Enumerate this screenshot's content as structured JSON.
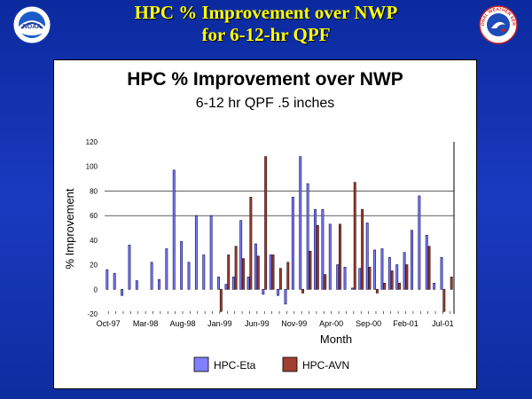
{
  "slide": {
    "title_line1": "HPC % Improvement over NWP",
    "title_line2": "for 6-12-hr QPF",
    "logo_left_text": "NOAA",
    "logo_right_text": "NATIONAL WEATHER SERVICE"
  },
  "colors": {
    "background": "#1533b5",
    "title": "#ffff00",
    "eta": "#8080ff",
    "avn": "#a04030"
  },
  "chart_data": {
    "type": "bar",
    "title": "HPC % Improvement over NWP",
    "subtitle": "6-12 hr QPF .5 inches",
    "xlabel": "Month",
    "ylabel": "% Improvement",
    "ylim": [
      -20,
      120
    ],
    "yticks": [
      -20,
      0,
      20,
      40,
      60,
      80,
      100,
      120
    ],
    "gridlines": [
      60,
      80
    ],
    "tick_labels": [
      "Oct-97",
      "Mar-98",
      "Aug-98",
      "Jan-99",
      "Jun-99",
      "Nov-99",
      "Apr-00",
      "Sep-00",
      "Feb-01",
      "Jul-01"
    ],
    "tick_index": [
      0,
      5,
      10,
      15,
      20,
      25,
      30,
      35,
      40,
      45
    ],
    "legend_position": "bottom",
    "categories": [
      "Oct-97",
      "Nov-97",
      "Dec-97",
      "Jan-98",
      "Feb-98",
      "Mar-98",
      "Apr-98",
      "May-98",
      "Jun-98",
      "Jul-98",
      "Aug-98",
      "Sep-98",
      "Oct-98",
      "Nov-98",
      "Dec-98",
      "Jan-99",
      "Feb-99",
      "Mar-99",
      "Apr-99",
      "May-99",
      "Jun-99",
      "Jul-99",
      "Aug-99",
      "Sep-99",
      "Oct-99",
      "Nov-99",
      "Dec-99",
      "Jan-00",
      "Feb-00",
      "Mar-00",
      "Apr-00",
      "May-00",
      "Jun-00",
      "Jul-00",
      "Aug-00",
      "Sep-00",
      "Oct-00",
      "Nov-00",
      "Dec-00",
      "Jan-01",
      "Feb-01",
      "Mar-01",
      "Apr-01",
      "May-01",
      "Jun-01",
      "Jul-01",
      "Aug-01"
    ],
    "series": [
      {
        "name": "HPC-Eta",
        "values": [
          16,
          13,
          -5,
          36,
          7,
          0,
          22,
          8,
          33,
          97,
          39,
          22,
          60,
          28,
          60,
          10,
          4,
          10,
          56,
          10,
          37,
          -4,
          28,
          -5,
          -12,
          75,
          108,
          86,
          65,
          65,
          53,
          20,
          18,
          1,
          17,
          54,
          32,
          33,
          26,
          20,
          30,
          48,
          76,
          44,
          5,
          26,
          0
        ]
      },
      {
        "name": "HPC-AVN",
        "values": [
          0,
          0,
          0,
          0,
          0,
          0,
          0,
          0,
          0,
          0,
          0,
          0,
          0,
          0,
          0,
          -18,
          28,
          35,
          25,
          75,
          27,
          108,
          28,
          17,
          22,
          0,
          -3,
          31,
          52,
          12,
          0,
          53,
          0,
          87,
          65,
          18,
          -3,
          5,
          15,
          5,
          20,
          0,
          0,
          35,
          0,
          -18,
          10
        ]
      }
    ]
  }
}
